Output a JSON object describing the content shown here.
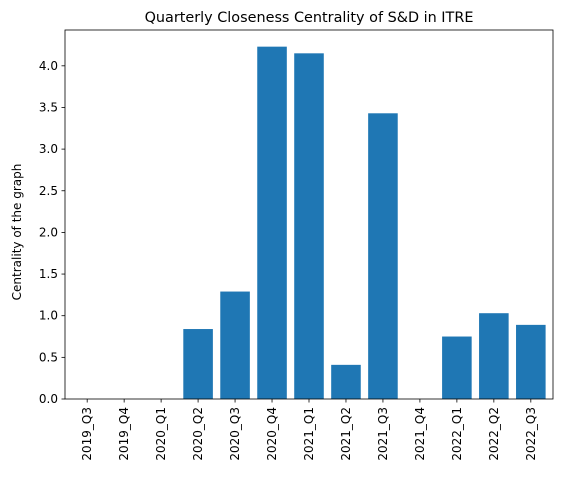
{
  "chart_data": {
    "type": "bar",
    "title": "Quarterly Closeness Centrality of S&D in ITRE",
    "xlabel": "",
    "ylabel": "Centrality of the graph",
    "categories": [
      "2019_Q3",
      "2019_Q4",
      "2020_Q1",
      "2020_Q2",
      "2020_Q3",
      "2020_Q4",
      "2021_Q1",
      "2021_Q2",
      "2021_Q3",
      "2021_Q4",
      "2022_Q1",
      "2022_Q2",
      "2022_Q3"
    ],
    "values": [
      0,
      0,
      0,
      0.84,
      1.29,
      4.23,
      4.15,
      0.41,
      3.43,
      0,
      0.75,
      1.03,
      0.89
    ],
    "ylim": [
      0,
      4.43
    ],
    "yticks": [
      "0.0",
      "0.5",
      "1.0",
      "1.5",
      "2.0",
      "2.5",
      "3.0",
      "3.5",
      "4.0"
    ],
    "bar_color": "#1f77b4",
    "grid": false,
    "legend": "none"
  }
}
